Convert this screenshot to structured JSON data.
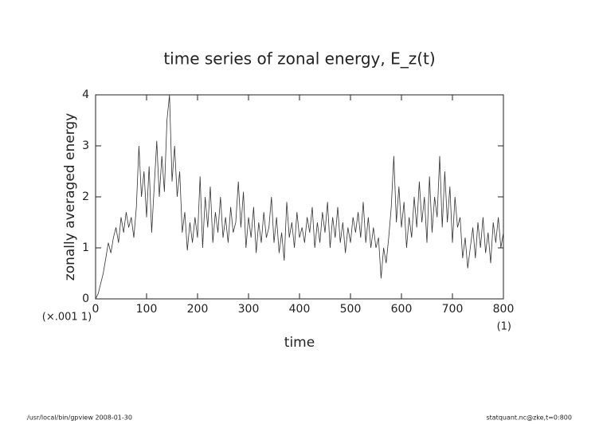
{
  "chart_data": {
    "type": "line",
    "title": "time series of zonal energy, E_z(t)",
    "xlabel": "time",
    "ylabel": "zonally averaged energy",
    "y_scale_note": "(×.001 1)",
    "x_unit_note": "(1)",
    "footer_left": "/usr/local/bin/gpview   2008-01-30",
    "footer_right": "statquant.nc@zke,t=0:800",
    "color": "#333333",
    "xlim": [
      0,
      800
    ],
    "xticks": [
      0,
      100,
      200,
      300,
      400,
      500,
      600,
      700,
      800
    ],
    "ylim": [
      0,
      4
    ],
    "yticks": [
      0,
      1,
      2,
      3,
      4
    ],
    "x": [
      0,
      5,
      10,
      15,
      20,
      25,
      30,
      35,
      40,
      45,
      50,
      55,
      60,
      65,
      70,
      75,
      80,
      85,
      90,
      95,
      100,
      105,
      110,
      115,
      120,
      125,
      130,
      135,
      140,
      145,
      150,
      155,
      160,
      165,
      170,
      175,
      180,
      185,
      190,
      195,
      200,
      205,
      210,
      215,
      220,
      225,
      230,
      235,
      240,
      245,
      250,
      255,
      260,
      265,
      270,
      275,
      280,
      285,
      290,
      295,
      300,
      305,
      310,
      315,
      320,
      325,
      330,
      335,
      340,
      345,
      350,
      355,
      360,
      365,
      370,
      375,
      380,
      385,
      390,
      395,
      400,
      405,
      410,
      415,
      420,
      425,
      430,
      435,
      440,
      445,
      450,
      455,
      460,
      465,
      470,
      475,
      480,
      485,
      490,
      495,
      500,
      505,
      510,
      515,
      520,
      525,
      530,
      535,
      540,
      545,
      550,
      555,
      560,
      565,
      570,
      575,
      580,
      585,
      590,
      595,
      600,
      605,
      610,
      615,
      620,
      625,
      630,
      635,
      640,
      645,
      650,
      655,
      660,
      665,
      670,
      675,
      680,
      685,
      690,
      695,
      700,
      705,
      710,
      715,
      720,
      725,
      730,
      735,
      740,
      745,
      750,
      755,
      760,
      765,
      770,
      775,
      780,
      785,
      790,
      795,
      800
    ],
    "values": [
      0,
      0.1,
      0.3,
      0.5,
      0.8,
      1.1,
      0.9,
      1.2,
      1.4,
      1.1,
      1.6,
      1.3,
      1.7,
      1.4,
      1.6,
      1.2,
      1.8,
      3.0,
      2.0,
      2.5,
      1.6,
      2.6,
      1.3,
      2.2,
      3.1,
      2.0,
      2.8,
      2.1,
      3.5,
      4.0,
      2.3,
      3.0,
      2.0,
      2.5,
      1.3,
      1.7,
      0.95,
      1.5,
      1.1,
      1.6,
      1.2,
      2.4,
      1.0,
      2.0,
      1.4,
      2.2,
      1.1,
      1.7,
      1.3,
      2.0,
      1.2,
      1.6,
      1.1,
      1.8,
      1.3,
      1.5,
      2.3,
      1.4,
      2.1,
      1.0,
      1.6,
      1.2,
      1.8,
      0.9,
      1.5,
      1.1,
      1.7,
      1.2,
      1.4,
      2.0,
      1.1,
      1.6,
      0.9,
      1.3,
      0.75,
      1.9,
      1.2,
      1.5,
      1.0,
      1.7,
      1.2,
      1.4,
      1.1,
      1.6,
      1.3,
      1.8,
      1.0,
      1.5,
      1.1,
      1.7,
      1.3,
      1.9,
      1.0,
      1.6,
      1.2,
      1.8,
      1.1,
      1.5,
      0.9,
      1.4,
      1.1,
      1.6,
      1.3,
      1.7,
      1.2,
      1.9,
      1.1,
      1.6,
      1.0,
      1.4,
      1.0,
      1.2,
      0.4,
      1.0,
      0.7,
      1.2,
      1.8,
      2.8,
      1.5,
      2.2,
      1.4,
      1.9,
      1.0,
      1.6,
      1.2,
      2.0,
      1.4,
      2.3,
      1.5,
      2.0,
      1.1,
      2.4,
      1.3,
      2.0,
      1.6,
      2.8,
      1.4,
      2.5,
      1.5,
      2.2,
      1.1,
      2.0,
      1.4,
      1.6,
      0.8,
      1.2,
      0.6,
      1.0,
      1.4,
      0.8,
      1.5,
      1.0,
      1.6,
      0.9,
      1.3,
      0.7,
      1.5,
      1.1,
      1.6,
      1.0,
      1.3
    ]
  }
}
